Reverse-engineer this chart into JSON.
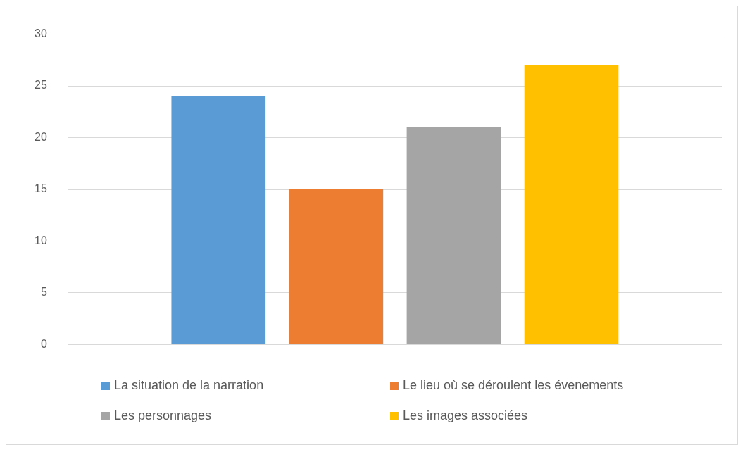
{
  "chart_data": {
    "type": "bar",
    "categories": [
      null
    ],
    "series": [
      {
        "name": "La situation de la narration",
        "color": "#5b9bd5",
        "values": [
          24
        ]
      },
      {
        "name": "Le lieu où se déroulent les évenements",
        "color": "#ed7d31",
        "values": [
          15
        ]
      },
      {
        "name": "Les personnages",
        "color": "#a5a5a5",
        "values": [
          21
        ]
      },
      {
        "name": "Les images associées",
        "color": "#ffc000",
        "values": [
          27
        ]
      }
    ],
    "ylim": [
      0,
      30
    ],
    "yticks": [
      0,
      5,
      10,
      15,
      20,
      25,
      30
    ],
    "grid": "y",
    "legend": "bottom"
  }
}
